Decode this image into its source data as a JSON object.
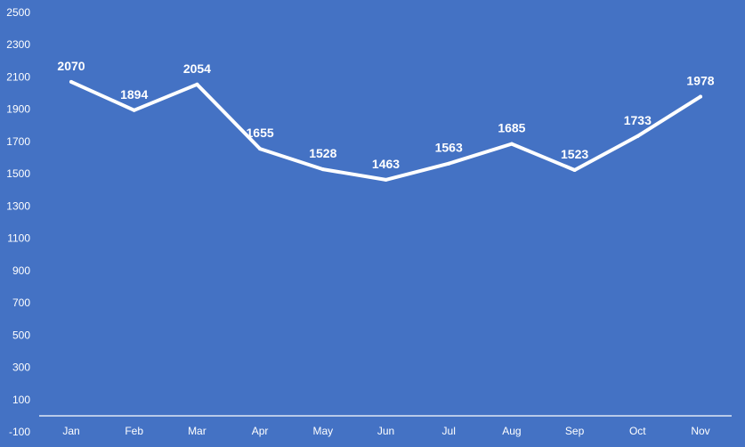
{
  "chart_data": {
    "type": "line",
    "categories": [
      "Jan",
      "Feb",
      "Mar",
      "Apr",
      "May",
      "Jun",
      "Jul",
      "Aug",
      "Sep",
      "Oct",
      "Nov"
    ],
    "values": [
      2070,
      1894,
      2054,
      1655,
      1528,
      1463,
      1563,
      1685,
      1523,
      1733,
      1978
    ],
    "y_ticks": [
      "-100",
      "100",
      "300",
      "500",
      "700",
      "900",
      "1100",
      "1300",
      "1500",
      "1700",
      "1900",
      "2100",
      "2300",
      "2500"
    ],
    "ylim": [
      -100,
      2500
    ],
    "data_labels": true,
    "drop_lines": true,
    "grid": false,
    "legend": "none",
    "colors": {
      "background": "#4472C4",
      "line": "#FFFFFF",
      "text": "#FFFFFF"
    }
  }
}
